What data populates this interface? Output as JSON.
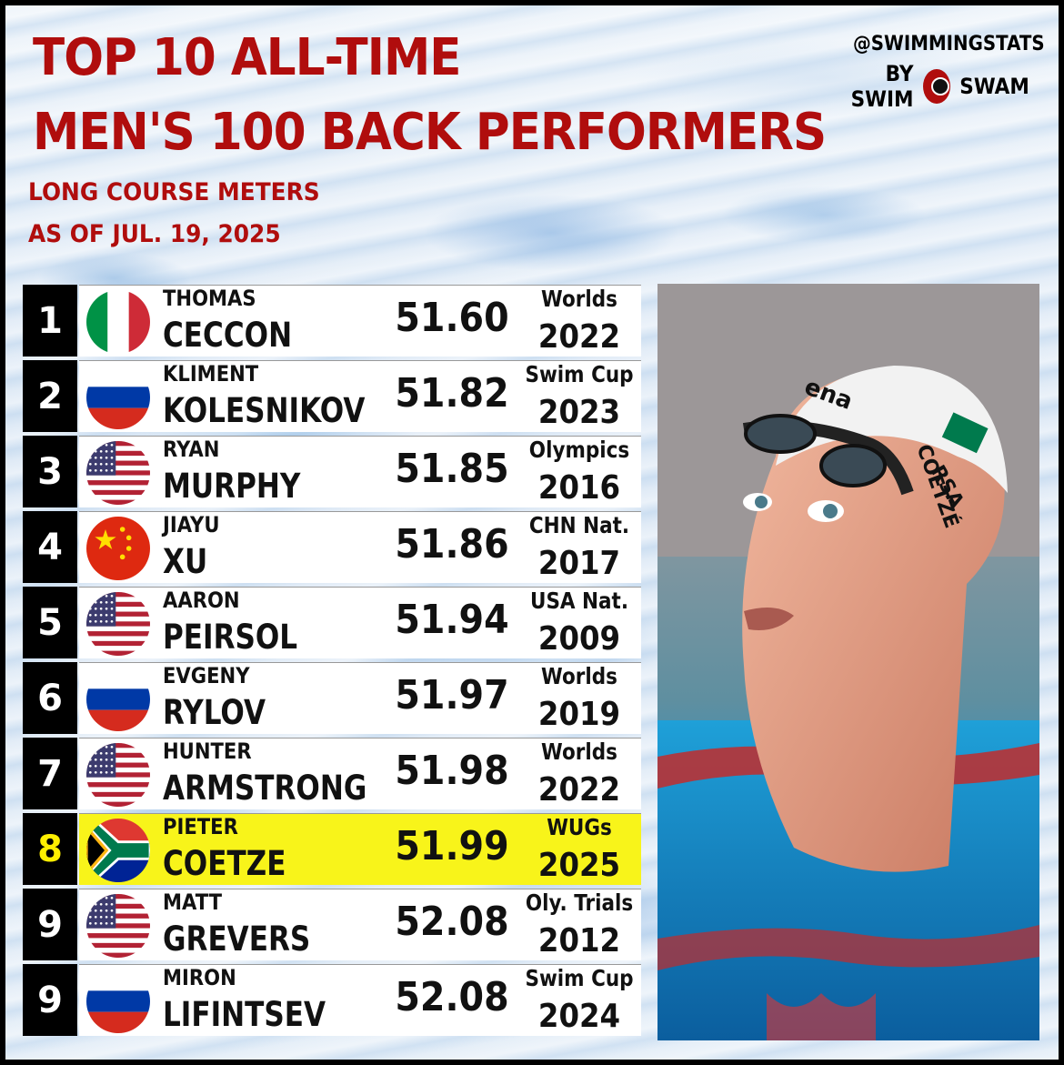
{
  "title": {
    "line1": "TOP 10 ALL-TIME",
    "line2": "MEN'S 100 BACK PERFORMERS"
  },
  "subtitle": {
    "course": "LONG COURSE METERS",
    "date": "AS OF JUL. 19, 2025"
  },
  "brand": {
    "handle": "@SWIMMINGSTATS",
    "by": "BY SWIM",
    "name": "SWAM"
  },
  "rows": [
    {
      "rank": "1",
      "first": "THOMAS",
      "last": "CECCON",
      "time": "51.60",
      "meet": "Worlds",
      "year": "2022",
      "flag": "italy-flag-icon"
    },
    {
      "rank": "2",
      "first": "KLIMENT",
      "last": "KOLESNIKOV",
      "time": "51.82",
      "meet": "Swim Cup",
      "year": "2023",
      "flag": "russia-flag-icon"
    },
    {
      "rank": "3",
      "first": "RYAN",
      "last": "MURPHY",
      "time": "51.85",
      "meet": "Olympics",
      "year": "2016",
      "flag": "usa-flag-icon"
    },
    {
      "rank": "4",
      "first": "JIAYU",
      "last": "XU",
      "time": "51.86",
      "meet": "CHN Nat.",
      "year": "2017",
      "flag": "china-flag-icon"
    },
    {
      "rank": "5",
      "first": "AARON",
      "last": "PEIRSOL",
      "time": "51.94",
      "meet": "USA Nat.",
      "year": "2009",
      "flag": "usa-flag-icon"
    },
    {
      "rank": "6",
      "first": "EVGENY",
      "last": "RYLOV",
      "time": "51.97",
      "meet": "Worlds",
      "year": "2019",
      "flag": "russia-flag-icon"
    },
    {
      "rank": "7",
      "first": "HUNTER",
      "last": "ARMSTRONG",
      "time": "51.98",
      "meet": "Worlds",
      "year": "2022",
      "flag": "usa-flag-icon"
    },
    {
      "rank": "8",
      "first": "PIETER",
      "last": "COETZE",
      "time": "51.99",
      "meet": "WUGs",
      "year": "2025",
      "flag": "south-africa-flag-icon",
      "highlight": true
    },
    {
      "rank": "9",
      "first": "MATT",
      "last": "GREVERS",
      "time": "52.08",
      "meet": "Oly. Trials",
      "year": "2012",
      "flag": "usa-flag-icon"
    },
    {
      "rank": "9",
      "first": "MIRON",
      "last": "LIFINTSEV",
      "time": "52.08",
      "meet": "Swim Cup",
      "year": "2024",
      "flag": "russia-flag-icon"
    }
  ],
  "photo": {
    "cap_brand": "ena",
    "cap_country": "RSA",
    "cap_name": "COETZÉ"
  },
  "colors": {
    "title_red": "#b00d0d",
    "highlight_yellow": "#f8f41a",
    "rank_highlight_text": "#ffef00"
  }
}
